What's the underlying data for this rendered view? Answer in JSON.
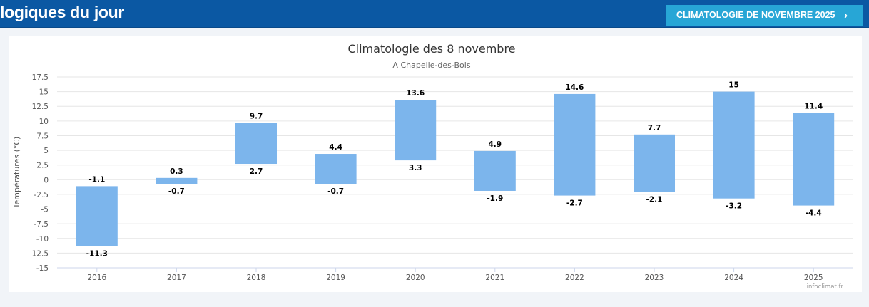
{
  "header": {
    "title": "logiques du jour",
    "month_button_label": "CLIMATOLOGIE DE NOVEMBRE 2025",
    "month_button_icon": "chevron-right-icon"
  },
  "colors": {
    "header_bg": "#0b58a3",
    "button_bg": "#27a6d6",
    "bar_fill": "#7cb5ec"
  },
  "chart_data": {
    "type": "bar",
    "subtype": "columnrange",
    "title": "Climatologie des 8 novembre",
    "subtitle": "A Chapelle-des-Bois",
    "xlabel": "",
    "ylabel": "Températures (°C)",
    "ylim": [
      -15,
      17.5
    ],
    "yticks": [
      "17.5",
      "15",
      "12.5",
      "10",
      "7.5",
      "5",
      "2.5",
      "0",
      "-2.5",
      "-5",
      "-7.5",
      "-10",
      "-12.5",
      "-15"
    ],
    "grid": true,
    "categories": [
      "2016",
      "2017",
      "2018",
      "2019",
      "2020",
      "2021",
      "2022",
      "2023",
      "2024",
      "2025"
    ],
    "series": [
      {
        "low": [
          -11.3,
          -0.7,
          2.7,
          -0.7,
          3.3,
          -1.9,
          -2.7,
          -2.1,
          -3.2,
          -4.4
        ],
        "high": [
          -1.1,
          0.3,
          9.7,
          4.4,
          13.6,
          4.9,
          14.6,
          7.7,
          15,
          11.4
        ],
        "low_labels": [
          "-11.3",
          "-0.7",
          "2.7",
          "-0.7",
          "3.3",
          "-1.9",
          "-2.7",
          "-2.1",
          "-3.2",
          "-4.4"
        ],
        "high_labels": [
          "-1.1",
          "0.3",
          "9.7",
          "4.4",
          "13.6",
          "4.9",
          "14.6",
          "7.7",
          "15",
          "11.4"
        ]
      }
    ],
    "credit": "infoclimat.fr"
  }
}
